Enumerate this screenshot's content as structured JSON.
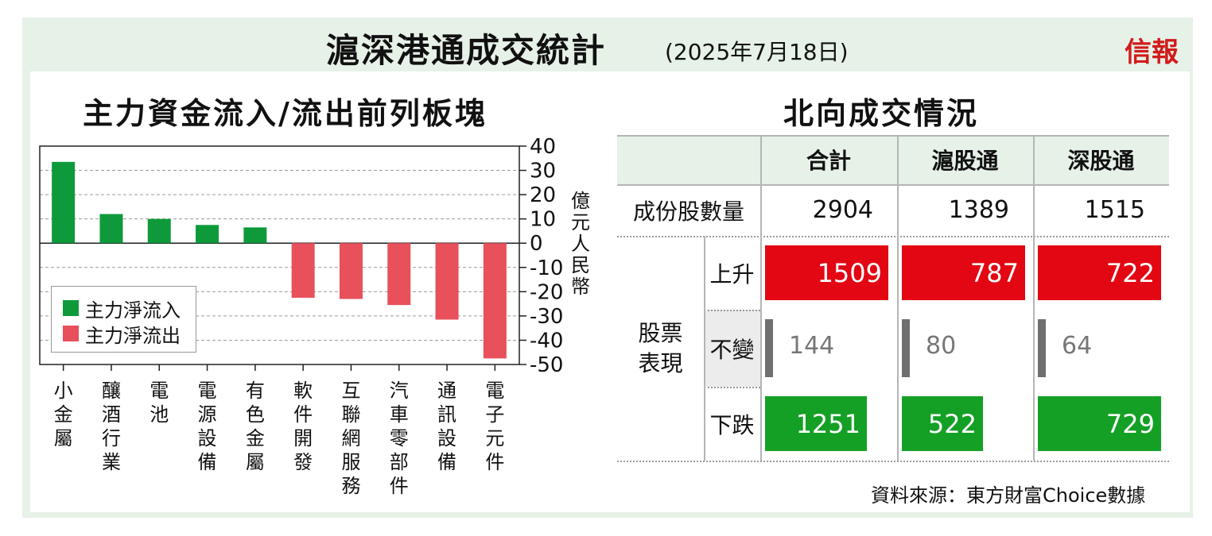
{
  "header": {
    "title": "滬深港通成交統計",
    "date": "(2025年7月18日)",
    "logo": "信報"
  },
  "chart_data": {
    "type": "bar",
    "title": "主力資金流入/流出前列板塊",
    "categories": [
      "小金屬",
      "釀酒行業",
      "電池",
      "電源設備",
      "有色金屬",
      "軟件開發",
      "互聯網服務",
      "汽車零部件",
      "通訊設備",
      "電子元件"
    ],
    "values": [
      33.5,
      12,
      10,
      7.5,
      6.5,
      -22.5,
      -23,
      -25.5,
      -31.5,
      -47.5
    ],
    "ylabel": "億元人民幣",
    "ylim": [
      -50,
      40
    ],
    "yticks": [
      40,
      30,
      20,
      10,
      0,
      -10,
      -20,
      -30,
      -40,
      -50
    ],
    "grid": true,
    "legend_position": "bottom-left",
    "series": [
      {
        "name": "主力淨流入",
        "color": "#0e9a3b"
      },
      {
        "name": "主力淨流出",
        "color": "#e8505b"
      }
    ]
  },
  "table": {
    "title": "北向成交情況",
    "headers": [
      "合計",
      "滬股通",
      "深股通"
    ],
    "constituent_label": "成份股數量",
    "constituents": [
      "2904",
      "1389",
      "1515"
    ],
    "group_label": "股票表現",
    "rows": [
      {
        "label": "上升",
        "values": [
          1509,
          787,
          722
        ],
        "color": "#e30613"
      },
      {
        "label": "不變",
        "values": [
          144,
          80,
          64
        ],
        "color": "#6f6f6f"
      },
      {
        "label": "下跌",
        "values": [
          1251,
          522,
          729
        ],
        "color": "#14a025"
      }
    ]
  },
  "source": "資料來源：東方財富Choice數據"
}
